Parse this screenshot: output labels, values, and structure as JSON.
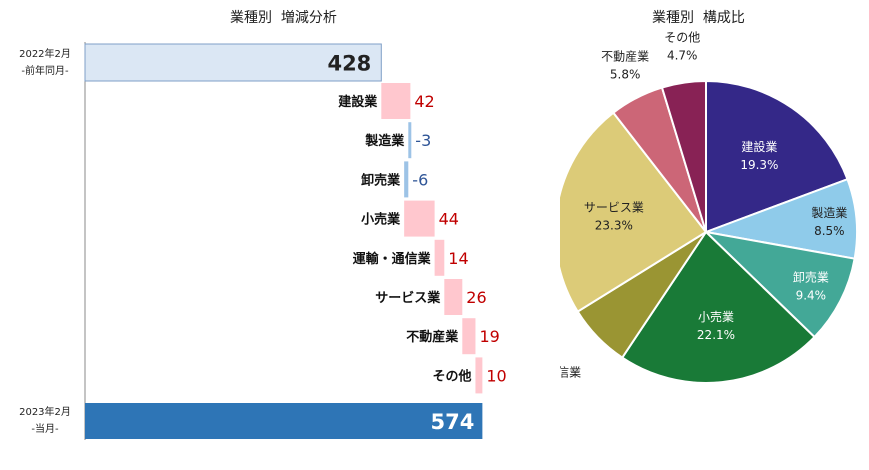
{
  "chart_data": [
    {
      "type": "bar",
      "subtype": "waterfall",
      "title": "業種別  増減分析",
      "start": {
        "label_line1": "2022年2月",
        "label_line2": "-前年同月-",
        "value": 428,
        "color": "#dbe7f4"
      },
      "end": {
        "label_line1": "2023年2月",
        "label_line2": "-当月-",
        "value": 574,
        "color": "#2e75b6"
      },
      "categories": [
        "建設業",
        "製造業",
        "卸売業",
        "小売業",
        "運輸・通信業",
        "サービス業",
        "不動産業",
        "その他"
      ],
      "values": [
        42,
        -3,
        -6,
        44,
        14,
        26,
        19,
        10
      ],
      "value_labels": [
        "42",
        "-3",
        "-6",
        "44",
        "14",
        "26",
        "19",
        "10"
      ],
      "colors": {
        "increase": "#ffc7ce",
        "decrease": "#9dc3e6",
        "increase_text": "#c00000",
        "decrease_text": "#2f5597"
      }
    },
    {
      "type": "pie",
      "title": "業種別  構成比",
      "labels": [
        "建設業",
        "製造業",
        "卸売業",
        "小売業",
        "運輸・通信業",
        "サービス業",
        "不動産業",
        "その他"
      ],
      "values": [
        19.3,
        8.5,
        9.4,
        22.1,
        6.8,
        23.3,
        5.8,
        4.7
      ],
      "value_labels": [
        "19.3%",
        "8.5%",
        "9.4%",
        "22.1%",
        "6.8%",
        "23.3%",
        "5.8%",
        "4.7%"
      ],
      "colors": [
        "#342888",
        "#8fcbea",
        "#43a897",
        "#197a37",
        "#9a9533",
        "#dccb78",
        "#cc6677",
        "#882255"
      ]
    }
  ]
}
